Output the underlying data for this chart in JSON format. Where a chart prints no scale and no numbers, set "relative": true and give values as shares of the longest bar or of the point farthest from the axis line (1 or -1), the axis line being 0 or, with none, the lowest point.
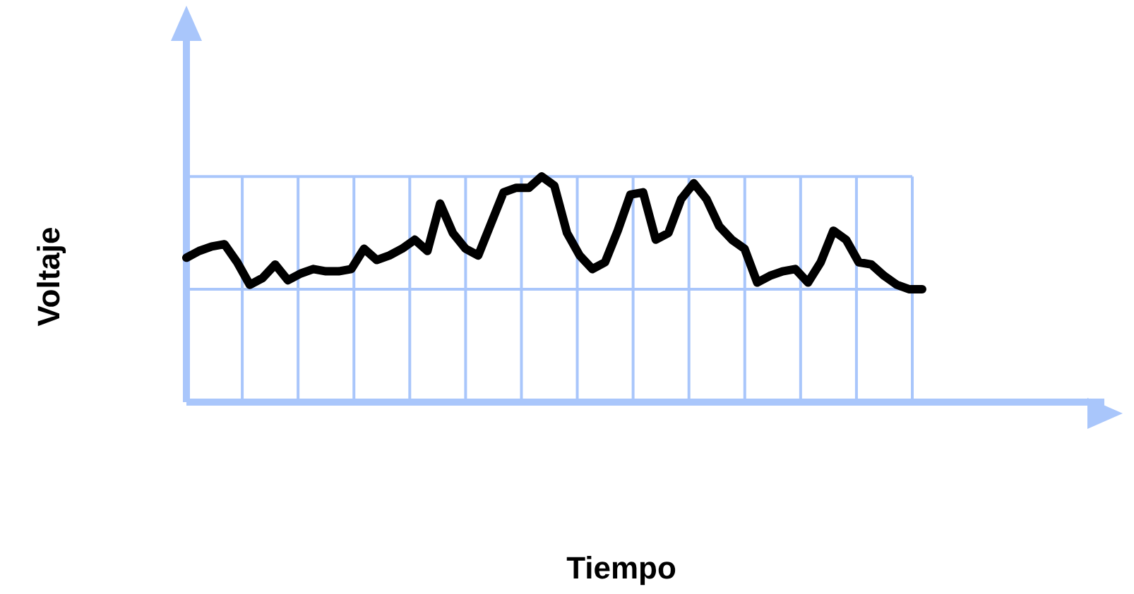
{
  "chart_data": {
    "type": "line",
    "xlabel": "Tiempo",
    "ylabel": "Voltaje",
    "relative": true,
    "grid": true,
    "legend": false,
    "marker": "none",
    "line_style": "solid",
    "categories": [
      null,
      null,
      null,
      null,
      null,
      null,
      null,
      null,
      null,
      null,
      null,
      null,
      null,
      null,
      null,
      null,
      null,
      null,
      null,
      null,
      null,
      null,
      null,
      null,
      null,
      null,
      null,
      null,
      null,
      null,
      null,
      null,
      null,
      null,
      null,
      null,
      null,
      null,
      null,
      null,
      null,
      null,
      null,
      null,
      null,
      null,
      null,
      null,
      null,
      null,
      null,
      null,
      null,
      null,
      null,
      null,
      null,
      null,
      null
    ],
    "series": [
      {
        "color": "#000000",
        "values": [
          0.64,
          0.67,
          0.69,
          0.7,
          0.62,
          0.52,
          0.55,
          0.61,
          0.54,
          0.57,
          0.59,
          0.58,
          0.58,
          0.59,
          0.68,
          0.63,
          0.65,
          0.68,
          0.72,
          0.67,
          0.88,
          0.75,
          0.68,
          0.65,
          0.79,
          0.93,
          0.95,
          0.95,
          1,
          0.96,
          0.75,
          0.65,
          0.59,
          0.62,
          0.76,
          0.92,
          0.93,
          0.72,
          0.75,
          0.9,
          0.97,
          0.9,
          0.78,
          0.72,
          0.68,
          0.53,
          0.56,
          0.58,
          0.59,
          0.53,
          0.62,
          0.76,
          0.72,
          0.62,
          0.61,
          0.56,
          0.52,
          0.5,
          0.5
        ]
      }
    ]
  }
}
